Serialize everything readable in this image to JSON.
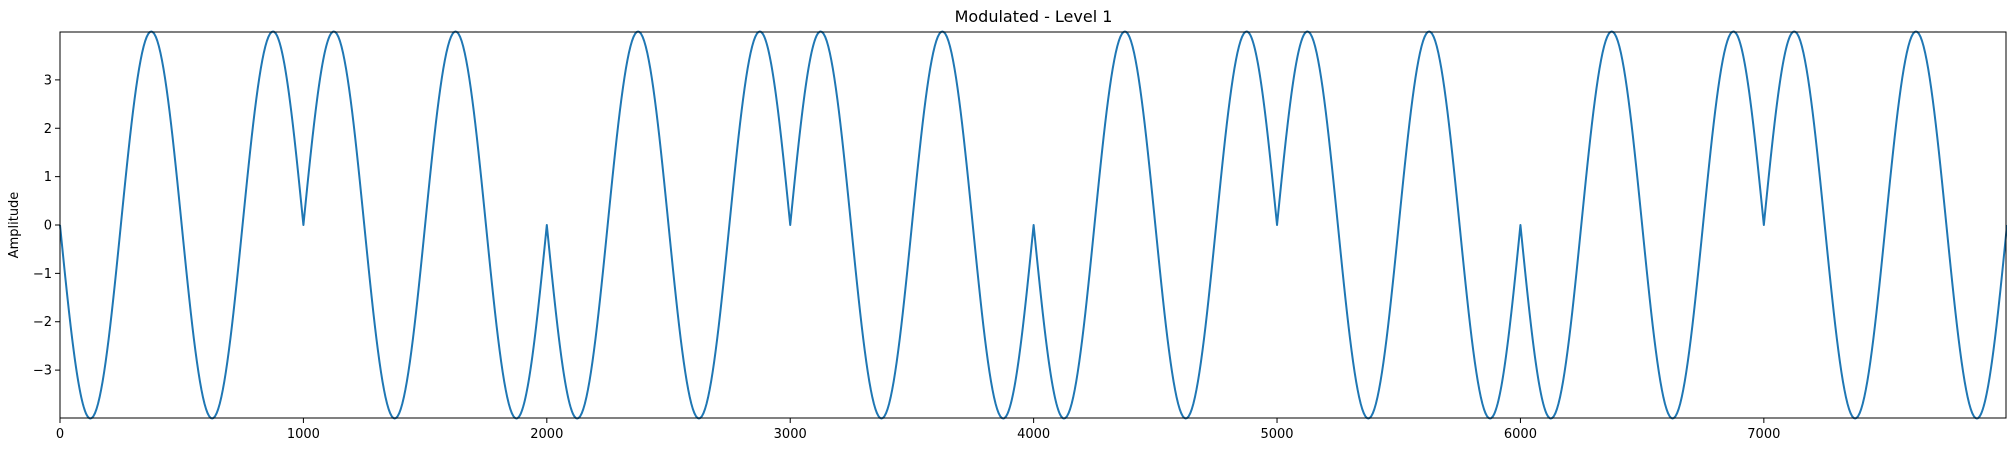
{
  "chart_data": {
    "type": "line",
    "title": "Modulated - Level 1",
    "xlabel": "",
    "ylabel": "Amplitude",
    "xlim": [
      0,
      7999
    ],
    "ylim": [
      -3.99,
      3.99
    ],
    "x_ticks": [
      0,
      1000,
      2000,
      3000,
      4000,
      5000,
      6000,
      7000
    ],
    "y_ticks": [
      -3,
      -2,
      -1,
      0,
      1,
      2,
      3
    ],
    "x_tick_labels": [
      "0",
      "1000",
      "2000",
      "3000",
      "4000",
      "5000",
      "6000",
      "7000"
    ],
    "y_tick_labels": [
      "−3",
      "−2",
      "−1",
      "0",
      "1",
      "2",
      "3"
    ],
    "grid": false,
    "legend": "none",
    "line_color": "#1f77b4",
    "series": [
      {
        "x": [
          0,
          125,
          375,
          625,
          875,
          1000,
          1125,
          1375,
          1625,
          1875,
          2000,
          2125,
          2375,
          2625,
          2875,
          3000,
          3125,
          3375,
          3625,
          3875,
          4000,
          4125,
          4375,
          4625,
          4875,
          5000,
          5125,
          5375,
          5625,
          5875,
          6000,
          6125,
          6375,
          6625,
          6875,
          7000,
          7125,
          7375,
          7625,
          7875,
          7999
        ],
        "values": [
          0,
          -4,
          4,
          -4,
          4,
          0,
          4,
          -4,
          4,
          -4,
          0,
          -4,
          4,
          -4,
          4,
          0,
          4,
          -4,
          4,
          -4,
          0,
          -4,
          4,
          -4,
          4,
          0,
          4,
          -4,
          4,
          -4,
          0,
          -4,
          4,
          -4,
          4,
          0,
          4,
          -4,
          4,
          -4,
          0
        ],
        "shape": "sinusoidal"
      }
    ]
  }
}
